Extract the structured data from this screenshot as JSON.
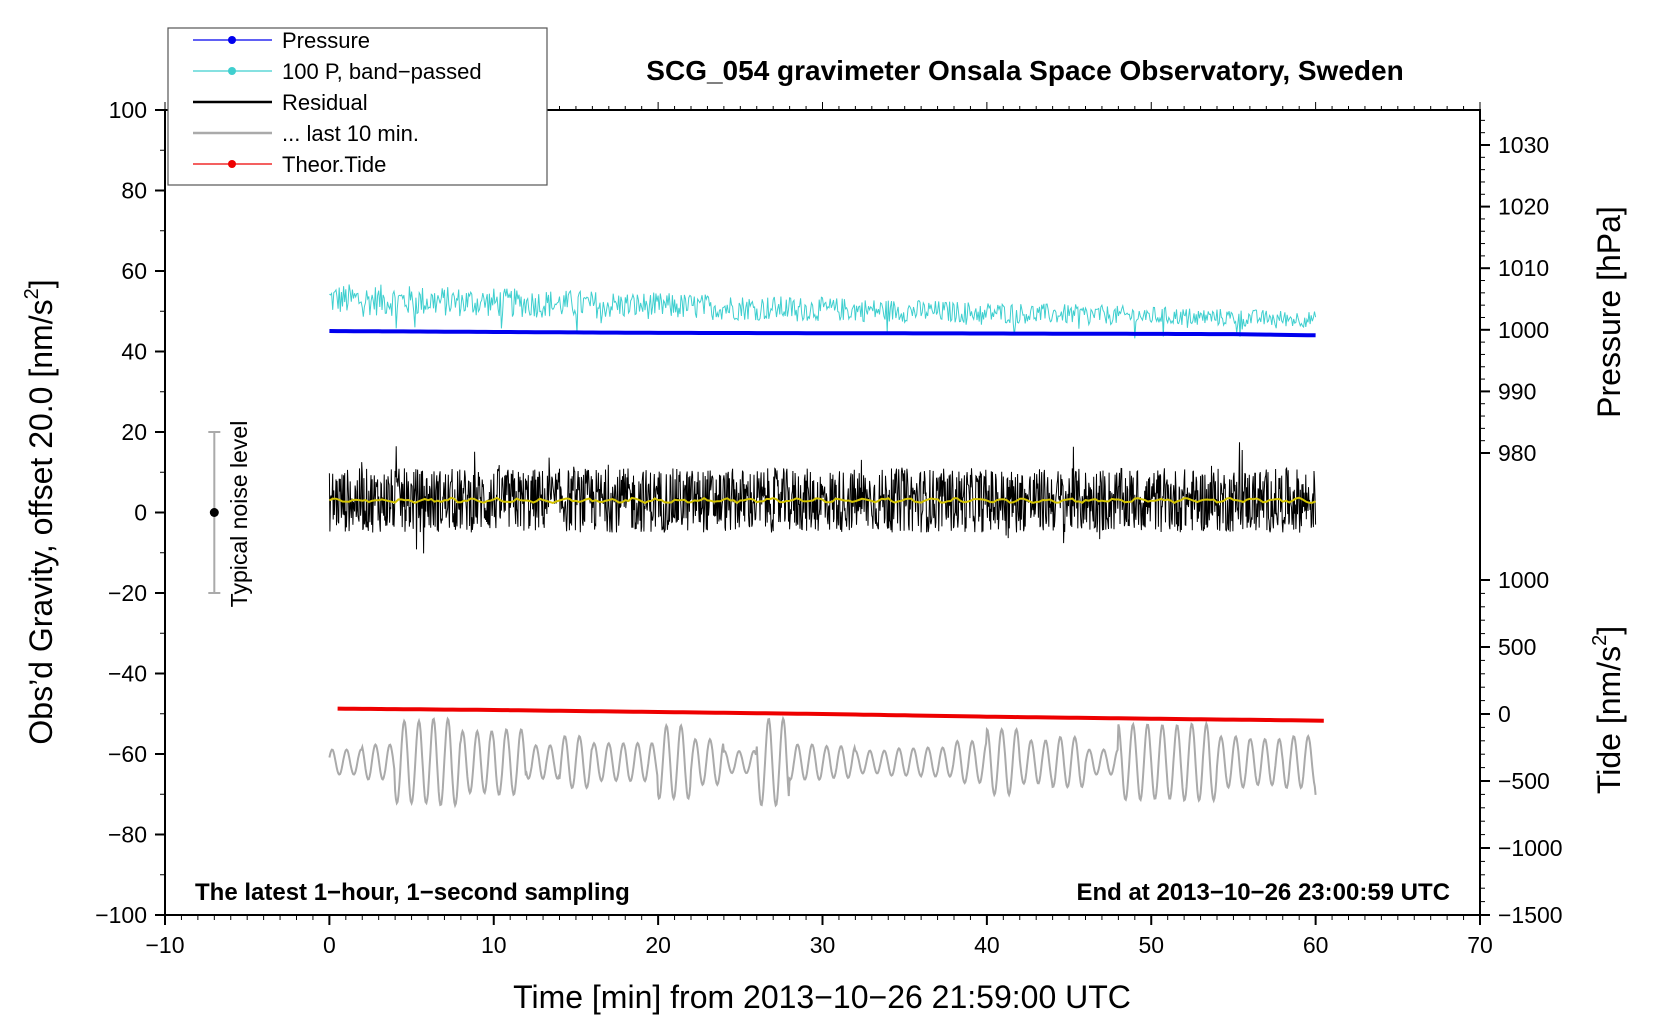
{
  "chart_data": {
    "type": "line",
    "title": "SCG_054 gravimeter Onsala Space Observatory, Sweden",
    "xlabel": "Time [min] from 2013−10−26 21:59:00 UTC",
    "ylabel_left_pre": "Obs’d Gravity, offset 20.0 [nm/s",
    "ylabel_left_sup": "2",
    "ylabel_left_post": "]",
    "ylabel_pressure": "Pressure [hPa]",
    "ylabel_tide_pre": "Tide [nm/s",
    "ylabel_tide_sup": "2",
    "ylabel_tide_post": "]",
    "xlim": [
      -10,
      70
    ],
    "ylim": [
      -100,
      100
    ],
    "pressure_lim": [
      975,
      1035
    ],
    "tide_lim": [
      -1500,
      1500
    ],
    "x_ticks": [
      "−10",
      "0",
      "10",
      "20",
      "30",
      "40",
      "50",
      "60",
      "70"
    ],
    "x_tick_values": [
      -10,
      0,
      10,
      20,
      30,
      40,
      50,
      60,
      70
    ],
    "y_ticks": [
      "100",
      "80",
      "60",
      "40",
      "20",
      "0",
      "−20",
      "−40",
      "−60",
      "−80",
      "−100"
    ],
    "y_tick_values": [
      100,
      80,
      60,
      40,
      20,
      0,
      -20,
      -40,
      -60,
      -80,
      -100
    ],
    "pressure_ticks": [
      "1030",
      "1020",
      "1010",
      "1000",
      "990",
      "980"
    ],
    "pressure_tick_values": [
      1030,
      1020,
      1010,
      1000,
      990,
      980
    ],
    "tide_ticks": [
      "1000",
      "500",
      "0",
      "−500",
      "−1000",
      "−1500"
    ],
    "tide_tick_values": [
      1000,
      500,
      0,
      -500,
      -1000,
      -1500
    ],
    "legend_position": "top-left",
    "legend": [
      {
        "label": "Pressure",
        "color": "#0000ee",
        "marker": true
      },
      {
        "label": "100 P, band−passed",
        "color": "#3fcfcf",
        "marker": true
      },
      {
        "label": "Residual",
        "color": "#000000",
        "marker": false
      },
      {
        "label": "... last 10 min.",
        "color": "#aaaaaa",
        "marker": false
      },
      {
        "label": "Theor.Tide",
        "color": "#ee0000",
        "marker": true
      }
    ],
    "annotations": {
      "noise_label": "Typical noise level",
      "noise_range": [
        -20,
        20
      ],
      "noise_x": -7,
      "bottom_left": "The latest 1−hour, 1−second sampling",
      "bottom_right": "End at 2013−10−26 23:00:59 UTC"
    },
    "series": [
      {
        "name": "Pressure",
        "color": "#0000ee",
        "axis": "pressure",
        "x": [
          0,
          20,
          40,
          55,
          60
        ],
        "values": [
          999.8,
          999.5,
          999.4,
          999.3,
          999.1
        ]
      },
      {
        "name": "100 P, band-passed",
        "color": "#3fcfcf",
        "axis": "left",
        "x": [
          0,
          60
        ],
        "center": [
          53,
          48
        ],
        "amplitude": [
          4,
          2
        ]
      },
      {
        "name": "Residual",
        "color": "#000000",
        "axis": "left",
        "x": [
          0,
          60
        ],
        "center": [
          3,
          3
        ],
        "amplitude": [
          8,
          8
        ]
      },
      {
        "name": "Residual smoothed",
        "color": "#d4c400",
        "axis": "left",
        "x": [
          0,
          60
        ],
        "center": [
          3,
          3
        ],
        "amplitude": [
          0.6,
          0.6
        ]
      },
      {
        "name": "... last 10 min.",
        "color": "#aaaaaa",
        "axis": "left",
        "x": [
          0,
          60
        ],
        "center": [
          -62,
          -62
        ],
        "amplitude": [
          7,
          7
        ]
      },
      {
        "name": "Theor.Tide",
        "color": "#ee0000",
        "axis": "tide",
        "x": [
          0.5,
          10,
          20,
          30,
          40,
          50,
          60.5
        ],
        "values": [
          40,
          30,
          15,
          0,
          -20,
          -35,
          -50
        ]
      }
    ]
  }
}
